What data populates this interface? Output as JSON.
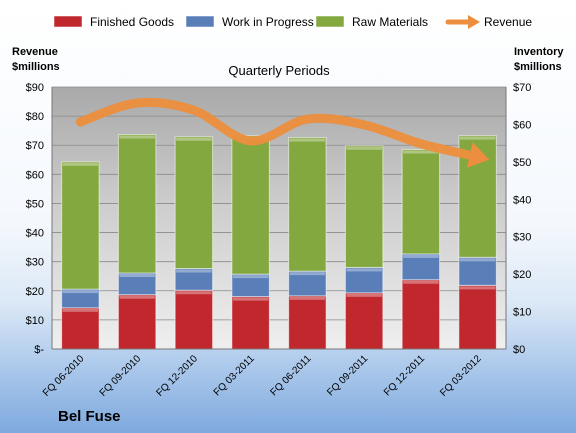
{
  "chart_data": {
    "type": "bar",
    "title": "Quarterly Periods",
    "company": "Bel Fuse",
    "ylabel_left": "Revenue\n$millions",
    "ylabel_right": "Inventory\n$millions",
    "categories": [
      "FQ 06-2010",
      "FQ 09-2010",
      "FQ 12-2010",
      "FQ 03-2011",
      "FQ 06-2011",
      "FQ 09-2011",
      "FQ 12-2011",
      "FQ 03-2012"
    ],
    "stacked": true,
    "left_axis": {
      "min": 0,
      "max": 90,
      "step": 10,
      "zero_label": "$-",
      "prefix": "$"
    },
    "right_axis": {
      "min": 0,
      "max": 70,
      "step": 10,
      "prefix": "$"
    },
    "bar_series": [
      {
        "name": "Finished Goods",
        "color": "#c0282d",
        "axis": "right",
        "values": [
          11,
          14.5,
          15.7,
          14,
          14.2,
          15,
          18.5,
          17
        ]
      },
      {
        "name": "Work in Progress",
        "color": "#5a7fb8",
        "axis": "right",
        "values": [
          5,
          5.8,
          5.8,
          6,
          6.6,
          6.8,
          6.9,
          7.5
        ]
      },
      {
        "name": "Raw Materials",
        "color": "#83a83f",
        "axis": "right",
        "values": [
          34,
          37,
          35.2,
          37,
          35.7,
          32.5,
          27.9,
          32.5
        ]
      }
    ],
    "line_series": [
      {
        "name": "Revenue",
        "color": "#ec8e3d",
        "axis": "left",
        "values": [
          78,
          84.5,
          82,
          71.5,
          79,
          77,
          70.5,
          66
        ]
      }
    ],
    "legend_position": "top",
    "grid": true
  }
}
